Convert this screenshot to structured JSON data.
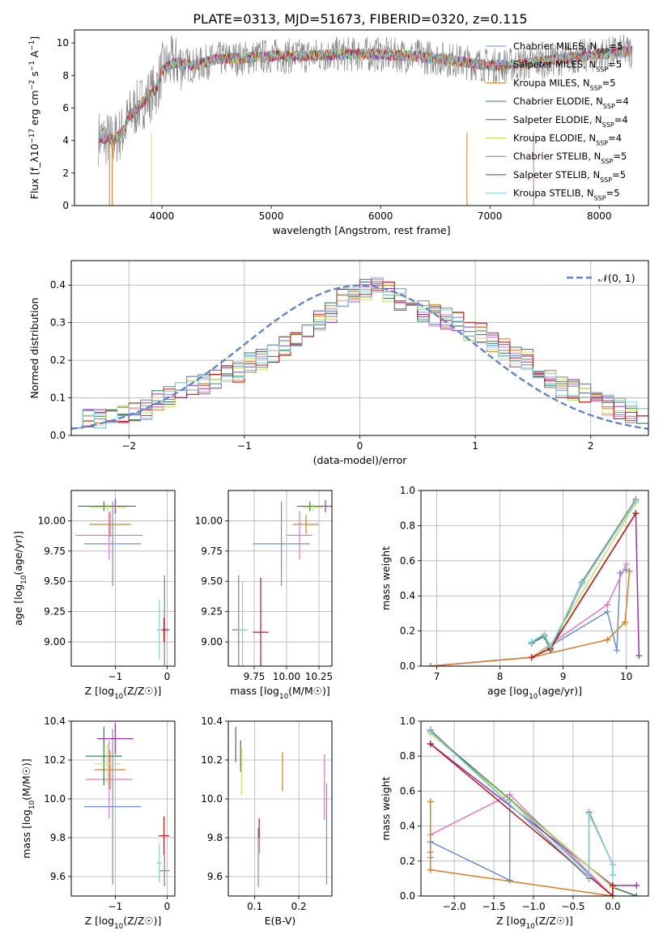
{
  "figure": {
    "title": "PLATE=0313, MJD=51673, FIBERID=0320, z=0.115"
  },
  "colors": {
    "Chabrier MILES": "#6a8fd8",
    "Salpeter MILES": "#e377c2",
    "Kroupa MILES": "#e07b22",
    "Chabrier ELODIE": "#2e7d4f",
    "Salpeter ELODIE": "#9a32b4",
    "Kroupa ELODIE": "#c8e65a",
    "Chabrier STELIB": "#7f7f7f",
    "Salpeter STELIB": "#c2181a",
    "Kroupa STELIB": "#7fd3df",
    "normal_curve": "#5b86d6"
  },
  "chart_data": [
    {
      "id": "spectrum",
      "type": "line",
      "xlabel": "wavelength [Angstrom, rest frame]",
      "ylabel": "Flux [f_λ10^-17 erg cm^-2 s^-1 A^-1]",
      "xlim": [
        3200,
        8450
      ],
      "ylim": [
        0,
        10.8
      ],
      "xticks": [
        4000,
        5000,
        6000,
        7000,
        8000
      ],
      "yticks": [
        0,
        2,
        4,
        6,
        8,
        10
      ],
      "legend_loc": "upper right",
      "legend": [
        {
          "label": "Chabrier MILES, N_SSP=5",
          "series": "Chabrier MILES"
        },
        {
          "label": "Salpeter MILES, N_SSP=5",
          "series": "Salpeter MILES"
        },
        {
          "label": "Kroupa MILES, N_SSP=5",
          "series": "Kroupa MILES"
        },
        {
          "label": "Chabrier ELODIE, N_SSP=4",
          "series": "Chabrier ELODIE"
        },
        {
          "label": "Salpeter ELODIE, N_SSP=4",
          "series": "Salpeter ELODIE"
        },
        {
          "label": "Kroupa ELODIE, N_SSP=4",
          "series": "Kroupa ELODIE"
        },
        {
          "label": "Chabrier STELIB, N_SSP=5",
          "series": "Chabrier STELIB"
        },
        {
          "label": "Salpeter STELIB, N_SSP=5",
          "series": "Salpeter STELIB"
        },
        {
          "label": "Kroupa STELIB, N_SSP=5",
          "series": "Kroupa STELIB"
        }
      ],
      "data_envelope": {
        "x": [
          3420,
          3550,
          3650,
          3700,
          3800,
          3950,
          4000,
          4100,
          4300,
          4500,
          4800,
          5000,
          5300,
          5600,
          6000,
          6300,
          6600,
          6800,
          7000,
          7300,
          7600,
          8000,
          8300
        ],
        "y": [
          4.2,
          4.0,
          4.6,
          5.5,
          6.2,
          7.2,
          8.3,
          8.8,
          8.6,
          9.0,
          9.1,
          9.2,
          9.2,
          9.3,
          9.3,
          9.2,
          9.0,
          8.8,
          8.6,
          8.7,
          9.0,
          9.3,
          9.5
        ]
      }
    },
    {
      "id": "residuals",
      "type": "histogram",
      "xlabel": "(data-model)/error",
      "ylabel": "Normed distribution",
      "xlim": [
        -2.5,
        2.5
      ],
      "ylim": [
        0,
        0.465
      ],
      "xticks": [
        -2,
        -1,
        0,
        1,
        2
      ],
      "yticks": [
        0.0,
        0.1,
        0.2,
        0.3,
        0.4
      ],
      "grid": true,
      "legend": [
        {
          "label": "𝒩(0, 1)"
        }
      ],
      "legend_loc": "upper right",
      "bin_width": 0.1,
      "bin_start": -2.5,
      "reference": [
        0.04,
        0.05,
        0.04,
        0.05,
        0.06,
        0.06,
        0.07,
        0.09,
        0.1,
        0.13,
        0.13,
        0.14,
        0.15,
        0.17,
        0.17,
        0.19,
        0.2,
        0.22,
        0.24,
        0.25,
        0.28,
        0.31,
        0.33,
        0.36,
        0.38,
        0.39,
        0.39,
        0.38,
        0.36,
        0.34,
        0.33,
        0.32,
        0.31,
        0.3,
        0.28,
        0.27,
        0.25,
        0.23,
        0.21,
        0.2,
        0.17,
        0.15,
        0.13,
        0.12,
        0.11,
        0.1,
        0.08,
        0.07,
        0.06,
        0.05
      ]
    },
    {
      "id": "age_vs_Z",
      "type": "errorbar",
      "xlabel": "Z [log10(Z/Z☉)]",
      "ylabel": "age [log10(age/yr)]",
      "xlim": [
        -1.85,
        0.15
      ],
      "ylim": [
        8.8,
        10.25
      ],
      "xticks": [
        -1,
        0
      ],
      "yticks": [
        9.0,
        9.25,
        9.5,
        9.75,
        10.0
      ],
      "points": [
        {
          "series": "Chabrier MILES",
          "x": -1.05,
          "y": 9.81,
          "xerr": 0.55,
          "yerr": 0.35
        },
        {
          "series": "Salpeter MILES",
          "x": -1.12,
          "y": 9.88,
          "xerr": 0.65,
          "yerr": 0.2
        },
        {
          "series": "Kroupa MILES",
          "x": -1.1,
          "y": 9.97,
          "xerr": 0.4,
          "yerr": 0.1
        },
        {
          "series": "Chabrier ELODIE",
          "x": -1.22,
          "y": 10.12,
          "xerr": 0.5,
          "yerr": 0.04
        },
        {
          "series": "Salpeter ELODIE",
          "x": -1.0,
          "y": 10.12,
          "xerr": 0.4,
          "yerr": 0.06
        },
        {
          "series": "Kroupa ELODIE",
          "x": -1.15,
          "y": 10.11,
          "xerr": 0.35,
          "yerr": 0.03
        },
        {
          "series": "Chabrier STELIB",
          "x": -0.05,
          "y": 9.1,
          "xerr": 0.1,
          "yerr": 0.45
        },
        {
          "series": "Salpeter STELIB",
          "x": -0.06,
          "y": 9.1,
          "xerr": 0.08,
          "yerr": 0.1
        },
        {
          "series": "Kroupa STELIB",
          "x": -0.15,
          "y": 9.1,
          "xerr": 0.05,
          "yerr": 0.25
        }
      ]
    },
    {
      "id": "age_vs_mass",
      "type": "errorbar",
      "xlabel": "mass [log10(M/M☉)]",
      "ylabel": "",
      "xlim": [
        9.55,
        10.35
      ],
      "ylim": [
        8.8,
        10.25
      ],
      "xticks": [
        9.75,
        10.0,
        10.25
      ],
      "yticks": [
        9.0,
        9.25,
        9.5,
        9.75,
        10.0
      ],
      "points": [
        {
          "series": "Chabrier MILES",
          "x": 9.96,
          "y": 9.81,
          "xerr": 0.22,
          "yerr": 0.35
        },
        {
          "series": "Salpeter MILES",
          "x": 10.1,
          "y": 9.88,
          "xerr": 0.1,
          "yerr": 0.2
        },
        {
          "series": "Kroupa MILES",
          "x": 10.15,
          "y": 9.97,
          "xerr": 0.1,
          "yerr": 0.08
        },
        {
          "series": "Chabrier ELODIE",
          "x": 10.18,
          "y": 10.12,
          "xerr": 0.1,
          "yerr": 0.04
        },
        {
          "series": "Salpeter ELODIE",
          "x": 10.3,
          "y": 10.12,
          "xerr": 0.05,
          "yerr": 0.05
        },
        {
          "series": "Kroupa ELODIE",
          "x": 10.2,
          "y": 10.11,
          "xerr": 0.08,
          "yerr": 0.03
        },
        {
          "series": "Chabrier STELIB",
          "x": 9.63,
          "y": 9.1,
          "xerr": 0.05,
          "yerr": 0.45
        },
        {
          "series": "Salpeter STELIB",
          "x": 9.8,
          "y": 9.08,
          "xerr": 0.06,
          "yerr": 0.45
        },
        {
          "series": "Kroupa STELIB",
          "x": 9.66,
          "y": 9.1,
          "xerr": 0.04,
          "yerr": 0.4
        }
      ]
    },
    {
      "id": "weight_vs_age",
      "type": "line",
      "xlabel": "age [log10(age/yr)]",
      "ylabel": "mass weight",
      "xlim": [
        6.75,
        10.35
      ],
      "ylim": [
        0,
        1.0
      ],
      "xticks": [
        7,
        8,
        9,
        10
      ],
      "yticks": [
        0.0,
        0.2,
        0.4,
        0.6,
        0.8,
        1.0
      ],
      "series": [
        {
          "series": "Chabrier MILES",
          "x": [
            6.9,
            8.5,
            9.7,
            9.85,
            9.9,
            10.0
          ],
          "y": [
            0.0,
            0.05,
            0.31,
            0.09,
            0.53,
            0.55
          ]
        },
        {
          "series": "Salpeter MILES",
          "x": [
            6.9,
            8.5,
            9.7,
            10.0
          ],
          "y": [
            0.0,
            0.05,
            0.35,
            0.58
          ]
        },
        {
          "series": "Kroupa MILES",
          "x": [
            6.9,
            8.5,
            9.7,
            9.98,
            10.05
          ],
          "y": [
            0.0,
            0.05,
            0.15,
            0.25,
            0.54
          ]
        },
        {
          "series": "Chabrier ELODIE",
          "x": [
            8.5,
            8.7,
            8.8,
            9.3,
            10.15
          ],
          "y": [
            0.13,
            0.17,
            0.09,
            0.47,
            0.94
          ]
        },
        {
          "series": "Salpeter ELODIE",
          "x": [
            8.5,
            8.8,
            10.15,
            10.2
          ],
          "y": [
            0.05,
            0.1,
            0.87,
            0.06
          ]
        },
        {
          "series": "Kroupa ELODIE",
          "x": [
            8.5,
            8.8,
            10.15
          ],
          "y": [
            0.05,
            0.12,
            0.93
          ]
        },
        {
          "series": "Chabrier STELIB",
          "x": [
            8.5,
            8.7,
            8.8,
            9.3,
            10.15
          ],
          "y": [
            0.13,
            0.18,
            0.1,
            0.48,
            0.95
          ]
        },
        {
          "series": "Salpeter STELIB",
          "x": [
            8.5,
            8.8,
            10.15
          ],
          "y": [
            0.05,
            0.1,
            0.87
          ]
        },
        {
          "series": "Kroupa STELIB",
          "x": [
            8.5,
            8.7,
            8.8,
            9.3,
            10.15
          ],
          "y": [
            0.14,
            0.18,
            0.11,
            0.47,
            0.94
          ]
        }
      ]
    },
    {
      "id": "mass_vs_Z",
      "type": "errorbar",
      "xlabel": "Z [log10(Z/Z☉)]",
      "ylabel": "mass [log10(M/M☉)]",
      "xlim": [
        -1.85,
        0.15
      ],
      "ylim": [
        9.5,
        10.4
      ],
      "xticks": [
        -1,
        0
      ],
      "yticks": [
        9.6,
        9.8,
        10.0,
        10.2,
        10.4
      ],
      "points": [
        {
          "series": "Chabrier MILES",
          "x": -1.05,
          "y": 9.96,
          "xerr": 0.55,
          "yerr": 0.4
        },
        {
          "series": "Salpeter MILES",
          "x": -1.12,
          "y": 10.1,
          "xerr": 0.45,
          "yerr": 0.2
        },
        {
          "series": "Kroupa MILES",
          "x": -1.1,
          "y": 10.15,
          "xerr": 0.3,
          "yerr": 0.1
        },
        {
          "series": "Chabrier ELODIE",
          "x": -1.22,
          "y": 10.22,
          "xerr": 0.35,
          "yerr": 0.15
        },
        {
          "series": "Salpeter ELODIE",
          "x": -1.0,
          "y": 10.31,
          "xerr": 0.35,
          "yerr": 0.08
        },
        {
          "series": "Kroupa ELODIE",
          "x": -1.15,
          "y": 10.18,
          "xerr": 0.25,
          "yerr": 0.1
        },
        {
          "series": "Chabrier STELIB",
          "x": -0.05,
          "y": 9.63,
          "xerr": 0.1,
          "yerr": 0.08
        },
        {
          "series": "Salpeter STELIB",
          "x": -0.06,
          "y": 9.81,
          "xerr": 0.1,
          "yerr": 0.1
        },
        {
          "series": "Kroupa STELIB",
          "x": -0.15,
          "y": 9.67,
          "xerr": 0.05,
          "yerr": 0.1
        }
      ]
    },
    {
      "id": "mass_vs_ebv",
      "type": "errorbar",
      "xlabel": "E(B-V)",
      "ylabel": "",
      "xlim": [
        0.04,
        0.275
      ],
      "ylim": [
        9.5,
        10.4
      ],
      "xticks": [
        0.1,
        0.2
      ],
      "yticks": [
        9.6,
        9.8,
        10.0,
        10.2,
        10.4
      ],
      "points": [
        {
          "series": "Chabrier MILES",
          "x": 0.263,
          "y": 9.82,
          "xerr": 0,
          "yerr": 0.26
        },
        {
          "series": "Salpeter MILES",
          "x": 0.258,
          "y": 10.06,
          "xerr": 0,
          "yerr": 0.17
        },
        {
          "series": "Kroupa MILES",
          "x": 0.163,
          "y": 10.14,
          "xerr": 0,
          "yerr": 0.1
        },
        {
          "series": "Chabrier ELODIE",
          "x": 0.068,
          "y": 10.22,
          "xerr": 0,
          "yerr": 0.08
        },
        {
          "series": "Salpeter ELODIE",
          "x": 0.057,
          "y": 10.28,
          "xerr": 0,
          "yerr": 0.09
        },
        {
          "series": "Kroupa ELODIE",
          "x": 0.07,
          "y": 10.14,
          "xerr": 0,
          "yerr": 0.12
        },
        {
          "series": "Chabrier STELIB",
          "x": 0.108,
          "y": 9.7,
          "xerr": 0,
          "yerr": 0.15
        },
        {
          "series": "Salpeter STELIB",
          "x": 0.11,
          "y": 9.81,
          "xerr": 0,
          "yerr": 0.09
        },
        {
          "series": "Kroupa STELIB",
          "x": 0.109,
          "y": 9.67,
          "xerr": 0,
          "yerr": 0.13
        }
      ]
    },
    {
      "id": "weight_vs_Z",
      "type": "line",
      "xlabel": "Z [log10(Z/Z☉)]",
      "ylabel": "mass weight",
      "xlim": [
        -2.42,
        0.45
      ],
      "ylim": [
        0,
        1.0
      ],
      "xticks": [
        -2.0,
        -1.5,
        -1.0,
        -0.5,
        0.0
      ],
      "yticks": [
        0.0,
        0.2,
        0.4,
        0.6,
        0.8,
        1.0
      ],
      "series": [
        {
          "series": "Chabrier MILES",
          "x": [
            -2.3,
            -2.3,
            -1.3,
            -1.3,
            0.0,
            0.0
          ],
          "y": [
            0.22,
            0.31,
            0.09,
            0.55,
            0.0,
            0.05
          ]
        },
        {
          "series": "Salpeter MILES",
          "x": [
            -2.3,
            -1.3,
            0.0,
            0.0
          ],
          "y": [
            0.35,
            0.58,
            0.0,
            0.05
          ]
        },
        {
          "series": "Kroupa MILES",
          "x": [
            -2.3,
            -2.3,
            -2.3,
            0.0,
            0.0
          ],
          "y": [
            0.54,
            0.25,
            0.15,
            0.0,
            0.05
          ]
        },
        {
          "series": "Chabrier ELODIE",
          "x": [
            -2.3,
            0.0,
            0.3
          ],
          "y": [
            0.94,
            0.05,
            0.0
          ]
        },
        {
          "series": "Salpeter ELODIE",
          "x": [
            -2.3,
            0.0,
            0.0,
            0.3
          ],
          "y": [
            0.87,
            0.06,
            0.06,
            0.06
          ]
        },
        {
          "series": "Kroupa ELODIE",
          "x": [
            -2.3,
            0.0,
            0.0
          ],
          "y": [
            0.93,
            0.05,
            0.0
          ]
        },
        {
          "series": "Chabrier STELIB",
          "x": [
            -2.3,
            -0.3,
            -0.3,
            0.0,
            0.0
          ],
          "y": [
            0.95,
            0.1,
            0.48,
            0.18,
            0.12
          ]
        },
        {
          "series": "Salpeter STELIB",
          "x": [
            -2.3,
            0.0,
            0.0
          ],
          "y": [
            0.87,
            0.0,
            0.06
          ]
        },
        {
          "series": "Kroupa STELIB",
          "x": [
            -2.3,
            -0.3,
            -0.3,
            0.0,
            0.0
          ],
          "y": [
            0.94,
            0.11,
            0.47,
            0.18,
            0.12
          ]
        }
      ]
    }
  ]
}
